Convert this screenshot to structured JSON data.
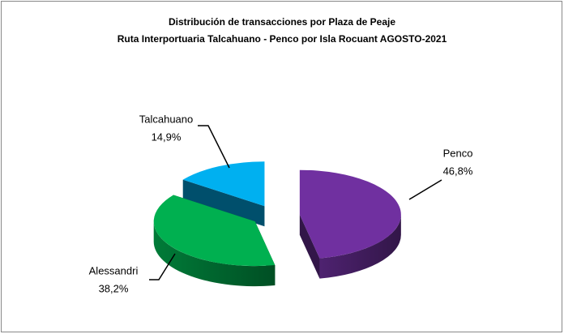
{
  "chart_data": {
    "type": "pie3d",
    "title": "Distribución de transacciones por Plaza de Peaje",
    "subtitle": "Ruta Interportuaria Talcahuano - Penco por Isla Rocuant  AGOSTO-2021",
    "categories": [
      "Penco",
      "Alessandri",
      "Talcahuano"
    ],
    "values": [
      46.8,
      38.2,
      14.9
    ],
    "value_labels": [
      "46,8%",
      "38,2%",
      "14,9%"
    ],
    "colors": [
      "#7030a0",
      "#00b050",
      "#00b0f0"
    ]
  }
}
